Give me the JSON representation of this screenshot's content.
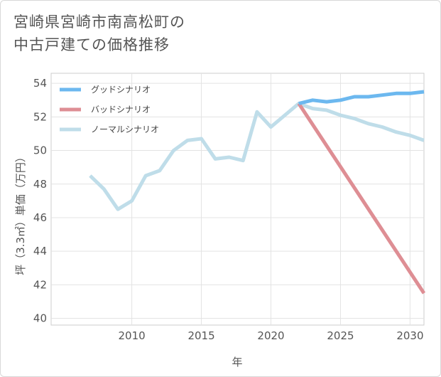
{
  "title_lines": [
    "宮崎県宮崎市南高松町の",
    "中古戸建ての価格推移"
  ],
  "chart_data": {
    "type": "line",
    "xlabel": "年",
    "ylabel": "坪（3.3㎡）単価（万円）",
    "xlim": [
      2004.2,
      2031
    ],
    "ylim": [
      39.6,
      54.6
    ],
    "xticks": [
      2010,
      2015,
      2020,
      2025,
      2030
    ],
    "yticks": [
      40,
      42,
      44,
      46,
      48,
      50,
      52,
      54
    ],
    "legend_position": "top-left",
    "grid": true,
    "series": [
      {
        "name": "グッドシナリオ",
        "color": "#6cb8ef",
        "x": [
          2022,
          2023,
          2024,
          2025,
          2026,
          2027,
          2028,
          2029,
          2030,
          2031
        ],
        "y": [
          52.8,
          53.0,
          52.9,
          53.0,
          53.2,
          53.2,
          53.3,
          53.4,
          53.4,
          53.5
        ]
      },
      {
        "name": "バッドシナリオ",
        "color": "#de8e94",
        "x": [
          2022,
          2031
        ],
        "y": [
          52.8,
          41.5
        ]
      },
      {
        "name": "ノーマルシナリオ",
        "color": "#bfdde9",
        "x": [
          2007,
          2008,
          2009,
          2010,
          2011,
          2012,
          2013,
          2014,
          2015,
          2016,
          2017,
          2018,
          2019,
          2020,
          2021,
          2022,
          2023,
          2024,
          2025,
          2026,
          2027,
          2028,
          2029,
          2030,
          2031
        ],
        "y": [
          48.5,
          47.7,
          46.5,
          47.0,
          48.5,
          48.8,
          50.0,
          50.6,
          50.7,
          49.5,
          49.6,
          49.4,
          52.3,
          51.4,
          52.1,
          52.8,
          52.5,
          52.4,
          52.1,
          51.9,
          51.6,
          51.4,
          51.1,
          50.9,
          50.6
        ]
      }
    ]
  }
}
